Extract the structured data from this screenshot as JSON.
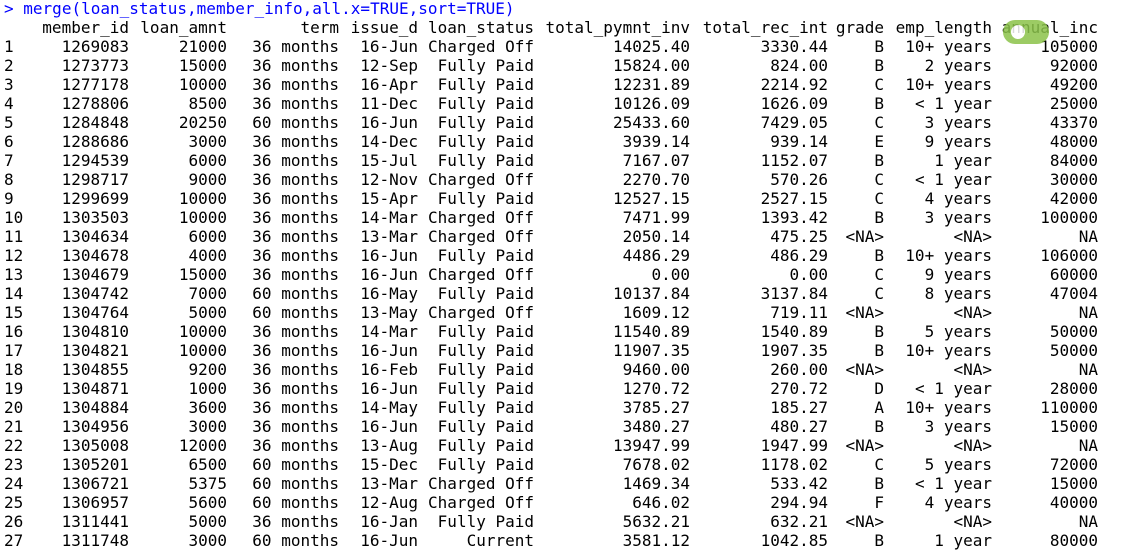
{
  "console": {
    "prompt": ">",
    "command": "merge(loan_status,member_info,all.x=TRUE,sort=TRUE)"
  },
  "table": {
    "headers": [
      "",
      "member_id",
      "loan_amnt",
      "term",
      "issue_d",
      "loan_status",
      "total_pymnt_inv",
      "total_rec_int",
      "grade",
      "emp_length",
      "annual_inc"
    ],
    "rows": [
      [
        "1",
        "1269083",
        "21000",
        "36 months",
        "16-Jun",
        "Charged Off",
        "14025.40",
        "3330.44",
        "B",
        "10+ years",
        "105000"
      ],
      [
        "2",
        "1273773",
        "15000",
        "36 months",
        "12-Sep",
        "Fully Paid",
        "15824.00",
        "824.00",
        "B",
        "2 years",
        "92000"
      ],
      [
        "3",
        "1277178",
        "10000",
        "36 months",
        "16-Apr",
        "Fully Paid",
        "12231.89",
        "2214.92",
        "C",
        "10+ years",
        "49200"
      ],
      [
        "4",
        "1278806",
        "8500",
        "36 months",
        "11-Dec",
        "Fully Paid",
        "10126.09",
        "1626.09",
        "B",
        "< 1 year",
        "25000"
      ],
      [
        "5",
        "1284848",
        "20250",
        "60 months",
        "16-Jun",
        "Fully Paid",
        "25433.60",
        "7429.05",
        "C",
        "3 years",
        "43370"
      ],
      [
        "6",
        "1288686",
        "3000",
        "36 months",
        "14-Dec",
        "Fully Paid",
        "3939.14",
        "939.14",
        "E",
        "9 years",
        "48000"
      ],
      [
        "7",
        "1294539",
        "6000",
        "36 months",
        "15-Jul",
        "Fully Paid",
        "7167.07",
        "1152.07",
        "B",
        "1 year",
        "84000"
      ],
      [
        "8",
        "1298717",
        "9000",
        "36 months",
        "12-Nov",
        "Charged Off",
        "2270.70",
        "570.26",
        "C",
        "< 1 year",
        "30000"
      ],
      [
        "9",
        "1299699",
        "10000",
        "36 months",
        "15-Apr",
        "Fully Paid",
        "12527.15",
        "2527.15",
        "C",
        "4 years",
        "42000"
      ],
      [
        "10",
        "1303503",
        "10000",
        "36 months",
        "14-Mar",
        "Charged Off",
        "7471.99",
        "1393.42",
        "B",
        "3 years",
        "100000"
      ],
      [
        "11",
        "1304634",
        "6000",
        "36 months",
        "13-Mar",
        "Charged Off",
        "2050.14",
        "475.25",
        "<NA>",
        "<NA>",
        "NA"
      ],
      [
        "12",
        "1304678",
        "4000",
        "36 months",
        "16-Jun",
        "Fully Paid",
        "4486.29",
        "486.29",
        "B",
        "10+ years",
        "106000"
      ],
      [
        "13",
        "1304679",
        "15000",
        "36 months",
        "16-Jun",
        "Charged Off",
        "0.00",
        "0.00",
        "C",
        "9 years",
        "60000"
      ],
      [
        "14",
        "1304742",
        "7000",
        "60 months",
        "16-May",
        "Fully Paid",
        "10137.84",
        "3137.84",
        "C",
        "8 years",
        "47004"
      ],
      [
        "15",
        "1304764",
        "5000",
        "60 months",
        "13-May",
        "Charged Off",
        "1609.12",
        "719.11",
        "<NA>",
        "<NA>",
        "NA"
      ],
      [
        "16",
        "1304810",
        "10000",
        "36 months",
        "14-Mar",
        "Fully Paid",
        "11540.89",
        "1540.89",
        "B",
        "5 years",
        "50000"
      ],
      [
        "17",
        "1304821",
        "10000",
        "36 months",
        "16-Jun",
        "Fully Paid",
        "11907.35",
        "1907.35",
        "B",
        "10+ years",
        "50000"
      ],
      [
        "18",
        "1304855",
        "9200",
        "36 months",
        "16-Feb",
        "Fully Paid",
        "9460.00",
        "260.00",
        "<NA>",
        "<NA>",
        "NA"
      ],
      [
        "19",
        "1304871",
        "1000",
        "36 months",
        "16-Jun",
        "Fully Paid",
        "1270.72",
        "270.72",
        "D",
        "< 1 year",
        "28000"
      ],
      [
        "20",
        "1304884",
        "3600",
        "36 months",
        "14-May",
        "Fully Paid",
        "3785.27",
        "185.27",
        "A",
        "10+ years",
        "110000"
      ],
      [
        "21",
        "1304956",
        "3000",
        "36 months",
        "16-Jun",
        "Fully Paid",
        "3480.27",
        "480.27",
        "B",
        "3 years",
        "15000"
      ],
      [
        "22",
        "1305008",
        "12000",
        "36 months",
        "13-Aug",
        "Fully Paid",
        "13947.99",
        "1947.99",
        "<NA>",
        "<NA>",
        "NA"
      ],
      [
        "23",
        "1305201",
        "6500",
        "60 months",
        "15-Dec",
        "Fully Paid",
        "7678.02",
        "1178.02",
        "C",
        "5 years",
        "72000"
      ],
      [
        "24",
        "1306721",
        "5375",
        "60 months",
        "13-Mar",
        "Charged Off",
        "1469.34",
        "533.42",
        "B",
        "< 1 year",
        "15000"
      ],
      [
        "25",
        "1306957",
        "5600",
        "60 months",
        "12-Aug",
        "Charged Off",
        "646.02",
        "294.94",
        "F",
        "4 years",
        "40000"
      ],
      [
        "26",
        "1311441",
        "5000",
        "36 months",
        "16-Jan",
        "Fully Paid",
        "5632.21",
        "632.21",
        "<NA>",
        "<NA>",
        "NA"
      ],
      [
        "27",
        "1311748",
        "3000",
        "60 months",
        "16-Jun",
        "Current",
        "3581.12",
        "1042.85",
        "B",
        "1 year",
        "80000"
      ]
    ]
  },
  "colors": {
    "command": "#0000ff",
    "output": "#000000",
    "watermark": "#8bc34a"
  },
  "watermark": {
    "icon": "green-logo-icon"
  }
}
